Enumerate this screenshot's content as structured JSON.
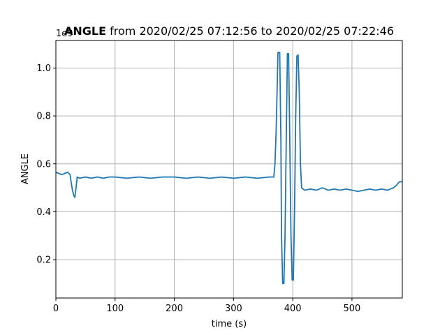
{
  "chart_data": {
    "type": "line",
    "title_bold": "ANGLE",
    "title_rest": " from 2020/02/25 07:12:56 to 2020/02/25 07:22:46",
    "xlabel": "time (s)",
    "ylabel": "ANGLE",
    "y_offset_label": "1e9",
    "xlim": [
      0,
      585
    ],
    "ylim": [
      0.04,
      1.115
    ],
    "grid": true,
    "x_ticks": [
      0,
      100,
      200,
      300,
      400,
      500
    ],
    "x_tick_labels": [
      "0",
      "100",
      "200",
      "300",
      "400",
      "500"
    ],
    "y_ticks": [
      0.2,
      0.4,
      0.6,
      0.8,
      1.0
    ],
    "y_tick_labels": [
      "0.2",
      "0.4",
      "0.6",
      "0.8",
      "1.0"
    ],
    "color": "#1f77b4",
    "series": [
      {
        "x": [
          0,
          5,
          10,
          15,
          20,
          24,
          26,
          28,
          30,
          32,
          34,
          36,
          40,
          50,
          60,
          70,
          80,
          90,
          100,
          120,
          140,
          160,
          180,
          200,
          220,
          240,
          260,
          280,
          300,
          320,
          340,
          360,
          368,
          370,
          372,
          374,
          375,
          378,
          380,
          381,
          383,
          385,
          387,
          389,
          391,
          393,
          395,
          397,
          399,
          401,
          403,
          405,
          407,
          409,
          411,
          413,
          415,
          420,
          430,
          440,
          450,
          460,
          470,
          480,
          490,
          500,
          510,
          520,
          530,
          540,
          550,
          560,
          570,
          575,
          580,
          585
        ],
        "y": [
          0.565,
          0.56,
          0.555,
          0.56,
          0.565,
          0.555,
          0.52,
          0.49,
          0.47,
          0.46,
          0.5,
          0.545,
          0.54,
          0.545,
          0.54,
          0.545,
          0.54,
          0.545,
          0.545,
          0.54,
          0.545,
          0.54,
          0.545,
          0.545,
          0.54,
          0.545,
          0.54,
          0.545,
          0.54,
          0.545,
          0.54,
          0.545,
          0.545,
          0.6,
          0.74,
          0.95,
          1.065,
          1.065,
          0.7,
          0.3,
          0.1,
          0.1,
          0.3,
          0.7,
          1.06,
          1.06,
          0.7,
          0.3,
          0.115,
          0.115,
          0.4,
          0.8,
          1.05,
          1.055,
          0.9,
          0.6,
          0.5,
          0.49,
          0.495,
          0.49,
          0.5,
          0.49,
          0.495,
          0.49,
          0.495,
          0.49,
          0.485,
          0.49,
          0.495,
          0.49,
          0.495,
          0.49,
          0.5,
          0.51,
          0.525,
          0.525
        ]
      }
    ]
  }
}
